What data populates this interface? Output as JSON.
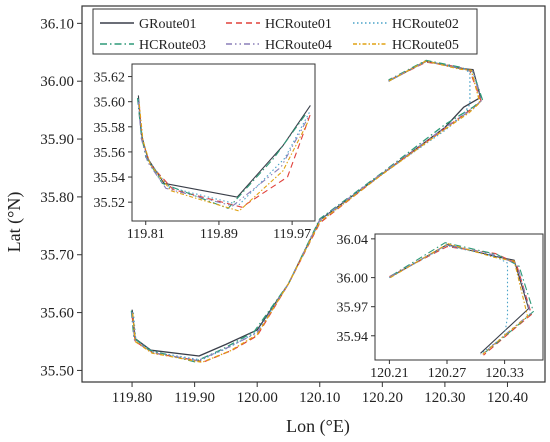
{
  "colors": {
    "GRoute01": "#3a3f4a",
    "HCRoute01": "#e0403a",
    "HCRoute02": "#4aa3c8",
    "HCRoute03": "#2f9a78",
    "HCRoute04": "#8a7fb8",
    "HCRoute05": "#e0a214"
  },
  "chart_data": [
    {
      "id": "main",
      "type": "line",
      "xlabel": "Lon (°E)",
      "ylabel": "Lat (°N)",
      "xlim": [
        119.72,
        120.46
      ],
      "ylim": [
        35.48,
        36.13
      ],
      "xticks": [
        "119.80",
        "119.90",
        "120.00",
        "120.10",
        "120.20",
        "120.30",
        "120.40"
      ],
      "yticks": [
        "35.50",
        "35.60",
        "35.70",
        "35.80",
        "35.90",
        "36.00",
        "36.10"
      ],
      "legend": {
        "position": "top",
        "columns": 3
      },
      "series": [
        {
          "name": "GRoute01",
          "style": "solid",
          "x": [
            119.8,
            119.805,
            119.83,
            119.907,
            119.95,
            120.0,
            120.05,
            120.1,
            120.2,
            120.3,
            120.33,
            120.357,
            120.345,
            120.325,
            120.27,
            120.21
          ],
          "y": [
            35.605,
            35.555,
            35.535,
            35.525,
            35.545,
            35.57,
            35.65,
            35.76,
            35.84,
            35.92,
            35.955,
            35.972,
            36.02,
            36.022,
            36.035,
            36.0
          ]
        },
        {
          "name": "HCRoute01",
          "style": "dashed",
          "x": [
            119.8,
            119.805,
            119.835,
            119.915,
            119.96,
            120.0,
            120.05,
            120.1,
            120.2,
            120.3,
            120.34,
            120.358,
            120.34,
            120.32,
            120.27,
            120.21
          ],
          "y": [
            35.595,
            35.55,
            35.53,
            35.515,
            35.535,
            35.56,
            35.65,
            35.755,
            35.84,
            35.918,
            35.95,
            35.965,
            36.018,
            36.025,
            36.033,
            36.001
          ]
        },
        {
          "name": "HCRoute02",
          "style": "dotted",
          "x": [
            119.802,
            119.806,
            119.833,
            119.91,
            119.955,
            120.0,
            120.05,
            120.1,
            120.2,
            120.3,
            120.328,
            120.34,
            120.34,
            120.33,
            120.27,
            120.21
          ],
          "y": [
            35.6,
            35.553,
            35.532,
            35.518,
            35.54,
            35.567,
            35.65,
            35.758,
            35.84,
            35.915,
            35.94,
            35.96,
            36.015,
            36.022,
            36.034,
            36.0
          ]
        },
        {
          "name": "HCRoute03",
          "style": "dashdot",
          "x": [
            119.799,
            119.803,
            119.828,
            119.9,
            119.945,
            119.995,
            120.05,
            120.1,
            120.2,
            120.3,
            120.345,
            120.36,
            120.345,
            120.325,
            120.27,
            120.21
          ],
          "y": [
            35.603,
            35.556,
            35.535,
            35.515,
            35.537,
            35.567,
            35.65,
            35.762,
            35.842,
            35.925,
            35.955,
            35.968,
            36.016,
            36.024,
            36.036,
            36.002
          ]
        },
        {
          "name": "HCRoute04",
          "style": "dashdotdot",
          "x": [
            119.8,
            119.804,
            119.831,
            119.905,
            119.95,
            120.0,
            120.05,
            120.1,
            120.2,
            120.3,
            120.342,
            120.358,
            120.345,
            120.322,
            120.27,
            120.21
          ],
          "y": [
            35.601,
            35.552,
            35.531,
            35.517,
            35.538,
            35.565,
            35.65,
            35.76,
            35.841,
            35.92,
            35.95,
            35.966,
            36.017,
            36.023,
            36.034,
            36.001
          ]
        },
        {
          "name": "HCRoute05",
          "style": "shortdashdot",
          "x": [
            119.801,
            119.805,
            119.832,
            119.912,
            119.957,
            120.0,
            120.05,
            120.1,
            120.2,
            120.3,
            120.338,
            120.356,
            120.342,
            120.323,
            120.27,
            120.21
          ],
          "y": [
            35.599,
            35.55,
            35.53,
            35.514,
            35.534,
            35.562,
            35.65,
            35.757,
            35.839,
            35.917,
            35.945,
            35.963,
            36.019,
            36.021,
            36.035,
            36.0
          ]
        }
      ]
    },
    {
      "id": "inset-left",
      "type": "line",
      "xlim": [
        119.795,
        119.995
      ],
      "ylim": [
        35.505,
        35.63
      ],
      "xticks": [
        "119.81",
        "119.89",
        "119.97"
      ],
      "yticks": [
        "35.52",
        "35.54",
        "35.56",
        "35.58",
        "35.60",
        "35.62"
      ],
      "series": [
        {
          "name": "GRoute01",
          "x": [
            119.802,
            119.805,
            119.812,
            119.83,
            119.91,
            119.96,
            119.99
          ],
          "y": [
            35.605,
            35.575,
            35.555,
            35.535,
            35.524,
            35.565,
            35.597
          ]
        },
        {
          "name": "HCRoute01",
          "x": [
            119.803,
            119.806,
            119.815,
            119.84,
            119.915,
            119.965,
            119.99
          ],
          "y": [
            35.597,
            35.57,
            35.55,
            35.53,
            35.516,
            35.54,
            35.59
          ]
        },
        {
          "name": "HCRoute02",
          "x": [
            119.802,
            119.806,
            119.813,
            119.835,
            119.912,
            119.962,
            119.99
          ],
          "y": [
            35.602,
            35.572,
            35.553,
            35.532,
            35.518,
            35.555,
            35.593
          ]
        },
        {
          "name": "HCRoute03",
          "x": [
            119.801,
            119.805,
            119.81,
            119.828,
            119.9,
            119.95,
            119.985
          ],
          "y": [
            35.603,
            35.574,
            35.556,
            35.535,
            35.515,
            35.555,
            35.59
          ]
        },
        {
          "name": "HCRoute04",
          "x": [
            119.802,
            119.805,
            119.812,
            119.832,
            119.905,
            119.958,
            119.988
          ],
          "y": [
            35.6,
            35.571,
            35.552,
            35.531,
            35.517,
            35.548,
            35.588
          ]
        },
        {
          "name": "HCRoute05",
          "x": [
            119.803,
            119.807,
            119.815,
            119.838,
            119.912,
            119.96,
            119.988
          ],
          "y": [
            35.598,
            35.569,
            35.55,
            35.529,
            35.513,
            35.545,
            35.585
          ]
        }
      ]
    },
    {
      "id": "inset-right",
      "type": "line",
      "xlim": [
        120.195,
        120.37
      ],
      "ylim": [
        35.915,
        36.045
      ],
      "xticks": [
        "120.21",
        "120.27",
        "120.33"
      ],
      "yticks": [
        "35.94",
        "35.97",
        "36.00",
        "36.04"
      ],
      "series": [
        {
          "name": "GRoute01",
          "x": [
            120.21,
            120.27,
            120.32,
            120.34,
            120.355,
            120.33,
            120.305
          ],
          "y": [
            36.0,
            36.034,
            36.022,
            36.018,
            35.968,
            35.945,
            35.922
          ]
        },
        {
          "name": "HCRoute01",
          "x": [
            120.21,
            120.27,
            120.32,
            120.342,
            120.358,
            120.335,
            120.308
          ],
          "y": [
            36.001,
            36.032,
            36.025,
            36.015,
            35.962,
            35.943,
            35.92
          ]
        },
        {
          "name": "HCRoute02",
          "x": [
            120.21,
            120.27,
            120.32,
            120.333,
            120.333,
            120.33,
            120.305
          ],
          "y": [
            36.0,
            36.033,
            36.022,
            36.015,
            35.96,
            35.94,
            35.921
          ]
        },
        {
          "name": "HCRoute03",
          "x": [
            120.212,
            120.268,
            120.322,
            120.345,
            120.36,
            120.338,
            120.31
          ],
          "y": [
            36.002,
            36.036,
            36.024,
            36.012,
            35.965,
            35.946,
            35.923
          ]
        },
        {
          "name": "HCRoute04",
          "x": [
            120.211,
            120.27,
            120.321,
            120.343,
            120.357,
            120.334,
            120.307
          ],
          "y": [
            36.001,
            36.034,
            36.023,
            36.014,
            35.963,
            35.944,
            35.921
          ]
        },
        {
          "name": "HCRoute05",
          "x": [
            120.211,
            120.271,
            120.319,
            120.34,
            120.354,
            120.332,
            120.306
          ],
          "y": [
            36.0,
            36.035,
            36.021,
            36.017,
            35.96,
            35.942,
            35.92
          ]
        }
      ]
    }
  ]
}
